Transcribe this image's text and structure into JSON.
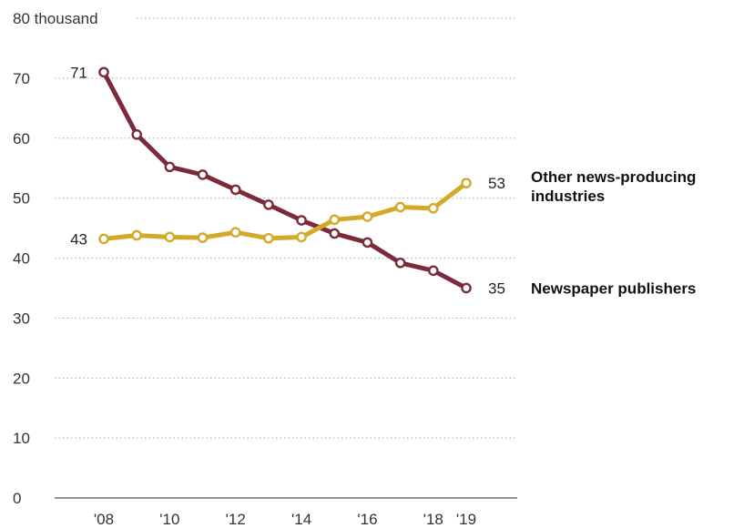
{
  "chart_data": {
    "type": "line",
    "x": [
      2008,
      2009,
      2010,
      2011,
      2012,
      2013,
      2014,
      2015,
      2016,
      2017,
      2018,
      2019
    ],
    "x_tick_labels": [
      {
        "x": 2008,
        "label": "'08"
      },
      {
        "x": 2010,
        "label": "'10"
      },
      {
        "x": 2012,
        "label": "'12"
      },
      {
        "x": 2014,
        "label": "'14"
      },
      {
        "x": 2016,
        "label": "'16"
      },
      {
        "x": 2018,
        "label": "'18"
      },
      {
        "x": 2019,
        "label": "'19"
      }
    ],
    "y_ticks": [
      {
        "value": 0,
        "label": "0"
      },
      {
        "value": 10,
        "label": "10"
      },
      {
        "value": 20,
        "label": "20"
      },
      {
        "value": 30,
        "label": "30"
      },
      {
        "value": 40,
        "label": "40"
      },
      {
        "value": 50,
        "label": "50"
      },
      {
        "value": 60,
        "label": "60"
      },
      {
        "value": 70,
        "label": "70"
      },
      {
        "value": 80,
        "label": "80 thousand"
      }
    ],
    "ylim": [
      0,
      80
    ],
    "grid": "dotted horizontal",
    "series": [
      {
        "name": "Newspaper publishers",
        "color": "#7b2a3a",
        "values": [
          71,
          60.6,
          55.2,
          53.9,
          51.4,
          48.9,
          46.3,
          44.1,
          42.6,
          39.2,
          37.9,
          35
        ],
        "start_label": "71",
        "end_label": "35",
        "legend_lines": [
          "Newspaper publishers"
        ]
      },
      {
        "name": "Other news-producing industries",
        "color": "#d4a92a",
        "values": [
          43.2,
          43.8,
          43.5,
          43.4,
          44.3,
          43.3,
          43.5,
          46.4,
          46.9,
          48.5,
          48.3,
          52.5
        ],
        "start_label": "43",
        "end_label": "53",
        "legend_lines": [
          "Other news-producing",
          "industries"
        ]
      }
    ]
  }
}
